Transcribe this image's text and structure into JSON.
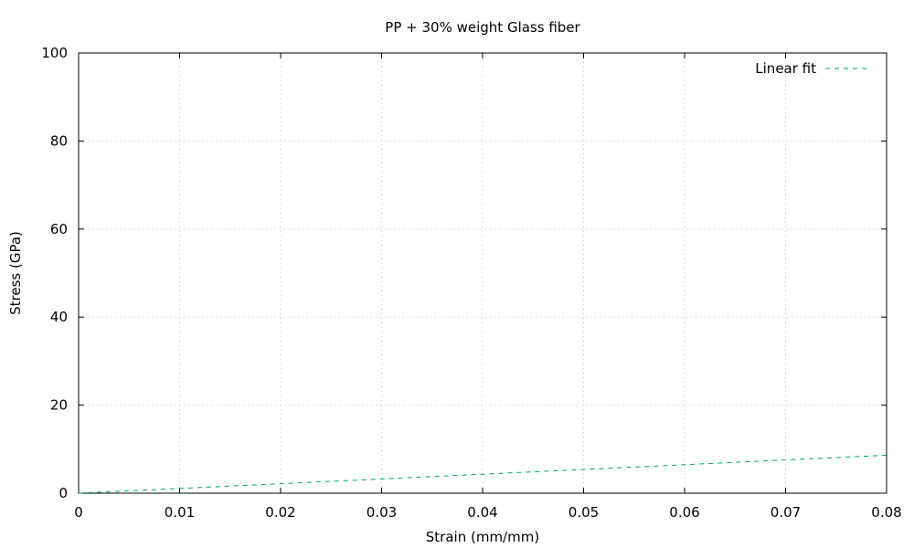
{
  "chart_data": {
    "type": "line",
    "title": "PP + 30% weight Glass fiber",
    "xlabel": "Strain (mm/mm)",
    "ylabel": "Stress (GPa)",
    "xlim": [
      0,
      0.08
    ],
    "ylim": [
      0,
      100
    ],
    "x_ticks": [
      "0",
      "0.01",
      "0.02",
      "0.03",
      "0.04",
      "0.05",
      "0.06",
      "0.07",
      "0.08"
    ],
    "y_ticks": [
      "0",
      "20",
      "40",
      "60",
      "80",
      "100"
    ],
    "grid": true,
    "legend_position": "top-right",
    "series": [
      {
        "name": "Linear fit",
        "style": "dashed",
        "color": "#009e73",
        "x": [
          0,
          0.01,
          0.02,
          0.03,
          0.04,
          0.05,
          0.06,
          0.07,
          0.08
        ],
        "y": [
          0,
          1.08,
          2.16,
          3.24,
          4.32,
          5.4,
          6.48,
          7.56,
          8.64
        ]
      }
    ]
  }
}
